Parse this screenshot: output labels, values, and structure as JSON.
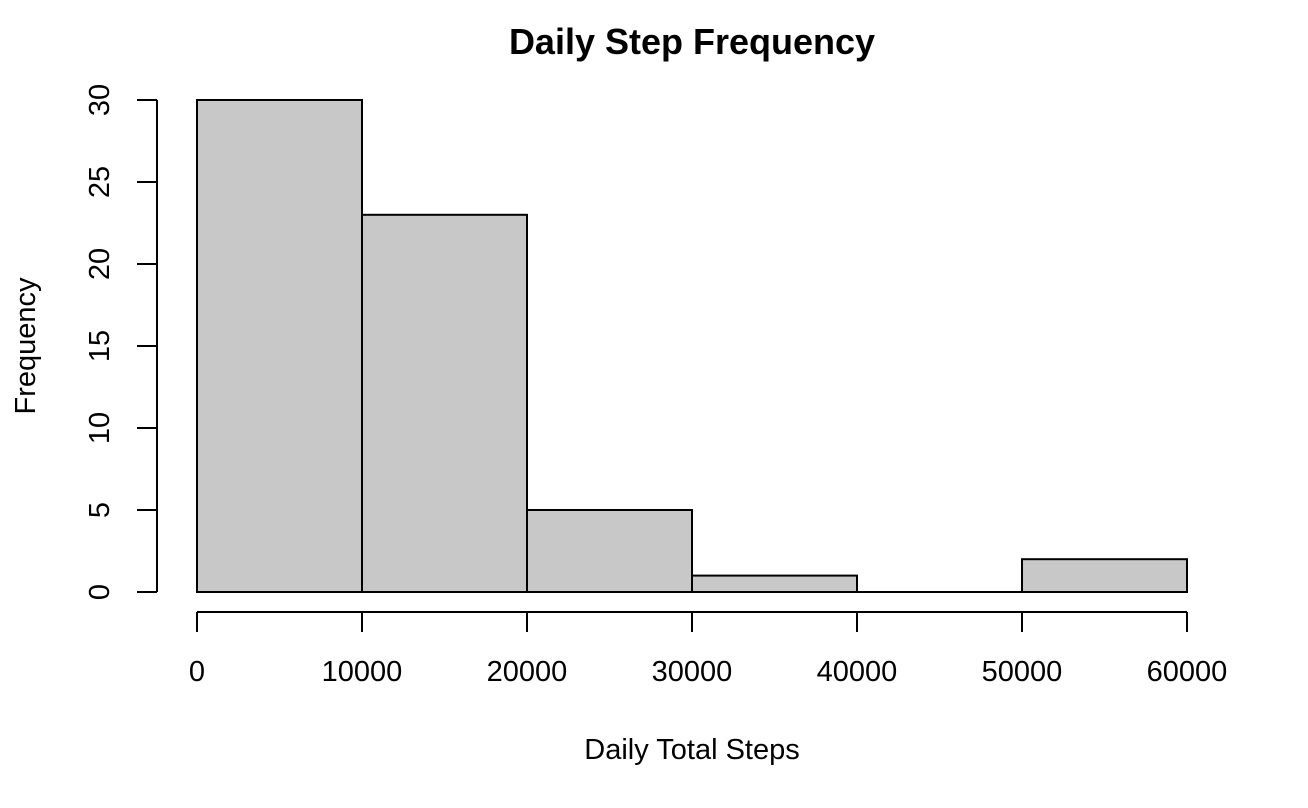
{
  "chart_data": {
    "type": "bar",
    "subtype": "histogram",
    "title": "Daily Step Frequency",
    "xlabel": "Daily Total Steps",
    "ylabel": "Frequency",
    "bins": [
      {
        "start": 0,
        "end": 10000,
        "count": 30
      },
      {
        "start": 10000,
        "end": 20000,
        "count": 23
      },
      {
        "start": 20000,
        "end": 30000,
        "count": 5
      },
      {
        "start": 30000,
        "end": 40000,
        "count": 1
      },
      {
        "start": 40000,
        "end": 50000,
        "count": 0
      },
      {
        "start": 50000,
        "end": 60000,
        "count": 2
      }
    ],
    "xlim": [
      0,
      60000
    ],
    "ylim": [
      0,
      30
    ],
    "x_ticks": [
      0,
      10000,
      20000,
      30000,
      40000,
      50000,
      60000
    ],
    "y_ticks": [
      0,
      5,
      10,
      15,
      20,
      25,
      30
    ],
    "grid": false,
    "legend": "none",
    "bar_color": "#c8c8c8",
    "edge_color": "#000000"
  }
}
